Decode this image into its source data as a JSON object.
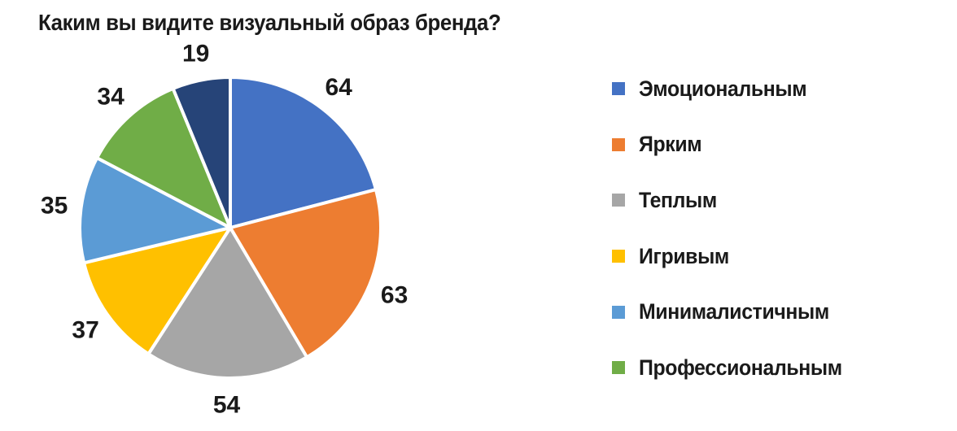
{
  "page": {
    "background": "#ffffff",
    "text_color": "#1a1a1a"
  },
  "chart_data": {
    "type": "pie",
    "title": "Каким вы видите визуальный образ бренда?",
    "slices": [
      {
        "label": "Эмоциональным",
        "value": 64,
        "color": "#4472C4"
      },
      {
        "label": "Ярким",
        "value": 63,
        "color": "#ED7D31"
      },
      {
        "label": "Теплым",
        "value": 54,
        "color": "#A6A6A6"
      },
      {
        "label": "Игривым",
        "value": 37,
        "color": "#FFC000"
      },
      {
        "label": "Минималистичным",
        "value": 35,
        "color": "#5B9BD5"
      },
      {
        "label": "Профессиональным",
        "value": 34,
        "color": "#70AD47"
      },
      {
        "label": "",
        "value": 19,
        "color": "#264478"
      }
    ],
    "data_labels": [
      "64",
      "63",
      "54",
      "37",
      "35",
      "34",
      "19"
    ],
    "legend": {
      "position": "right",
      "items": [
        {
          "label": "Эмоциональным",
          "color": "#4472C4"
        },
        {
          "label": "Ярким",
          "color": "#ED7D31"
        },
        {
          "label": "Теплым",
          "color": "#A6A6A6"
        },
        {
          "label": "Игривым",
          "color": "#FFC000"
        },
        {
          "label": "Минималистичным",
          "color": "#5B9BD5"
        },
        {
          "label": "Профессиональным",
          "color": "#70AD47"
        }
      ]
    },
    "start_angle_deg": 0,
    "direction": "clockwise",
    "slice_border_color": "#ffffff"
  }
}
